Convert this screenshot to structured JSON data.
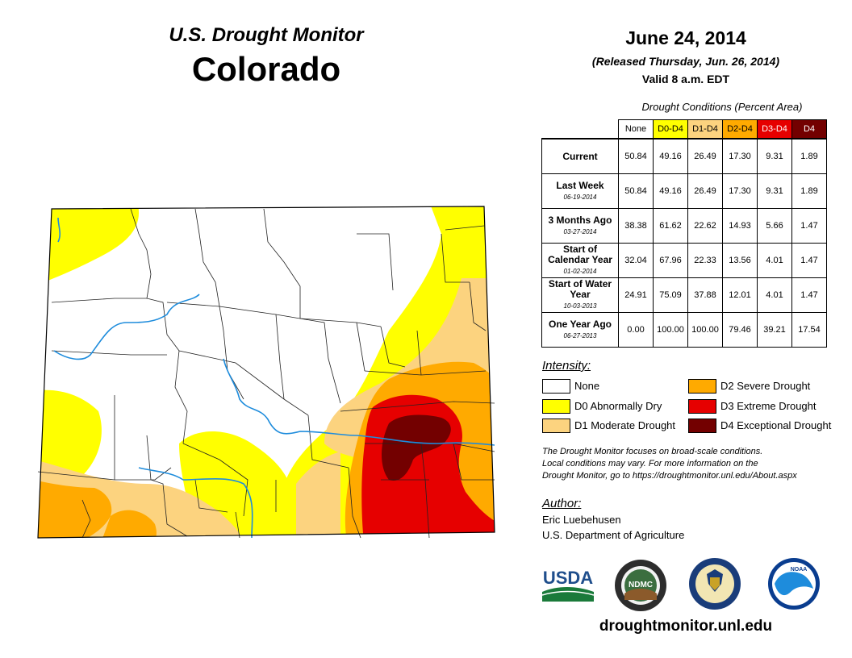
{
  "header": {
    "subtitle": "U.S. Drought Monitor",
    "state": "Colorado"
  },
  "release": {
    "date": "June 24, 2014",
    "released": "(Released Thursday, Jun. 26, 2014)",
    "valid": "Valid 8 a.m. EDT"
  },
  "conditions": {
    "title": "Drought Conditions (Percent Area)",
    "columns": [
      {
        "label": "None",
        "bg": "#ffffff",
        "fg": "#000000"
      },
      {
        "label": "D0-D4",
        "bg": "#ffff00",
        "fg": "#000000"
      },
      {
        "label": "D1-D4",
        "bg": "#fcd37f",
        "fg": "#000000"
      },
      {
        "label": "D2-D4",
        "bg": "#ffaa00",
        "fg": "#000000"
      },
      {
        "label": "D3-D4",
        "bg": "#e60000",
        "fg": "#ffffff"
      },
      {
        "label": "D4",
        "bg": "#730000",
        "fg": "#ffffff"
      }
    ],
    "rows": [
      {
        "label": "Current",
        "sub": "",
        "values": [
          "50.84",
          "49.16",
          "26.49",
          "17.30",
          "9.31",
          "1.89"
        ]
      },
      {
        "label": "Last Week",
        "sub": "06-19-2014",
        "values": [
          "50.84",
          "49.16",
          "26.49",
          "17.30",
          "9.31",
          "1.89"
        ]
      },
      {
        "label": "3 Months Ago",
        "sub": "03-27-2014",
        "values": [
          "38.38",
          "61.62",
          "22.62",
          "14.93",
          "5.66",
          "1.47"
        ]
      },
      {
        "label": "Start of Calendar Year",
        "sub": "01-02-2014",
        "values": [
          "32.04",
          "67.96",
          "22.33",
          "13.56",
          "4.01",
          "1.47"
        ]
      },
      {
        "label": "Start of Water Year",
        "sub": "10-03-2013",
        "values": [
          "24.91",
          "75.09",
          "37.88",
          "12.01",
          "4.01",
          "1.47"
        ]
      },
      {
        "label": "One Year Ago",
        "sub": "06-27-2013",
        "values": [
          "0.00",
          "100.00",
          "100.00",
          "79.46",
          "39.21",
          "17.54"
        ]
      }
    ]
  },
  "legend": {
    "title": "Intensity:",
    "items": [
      {
        "label": "None",
        "color": "#ffffff"
      },
      {
        "label": "D0 Abnormally Dry",
        "color": "#ffff00"
      },
      {
        "label": "D1 Moderate Drought",
        "color": "#fcd37f"
      },
      {
        "label": "D2 Severe Drought",
        "color": "#ffaa00"
      },
      {
        "label": "D3 Extreme Drought",
        "color": "#e60000"
      },
      {
        "label": "D4 Exceptional Drought",
        "color": "#730000"
      }
    ]
  },
  "note": {
    "line1": "The Drought Monitor focuses on broad-scale conditions.",
    "line2": "Local conditions may vary. For more information on the",
    "line3": "Drought Monitor, go to https://droughtmonitor.unl.edu/About.aspx"
  },
  "author": {
    "title": "Author:",
    "name": "Eric Luebehusen",
    "org": "U.S. Department of Agriculture"
  },
  "logos": {
    "usda": "USDA",
    "ndmc": "NDMC",
    "noaa": "NOAA"
  },
  "website": "droughtmonitor.unl.edu"
}
